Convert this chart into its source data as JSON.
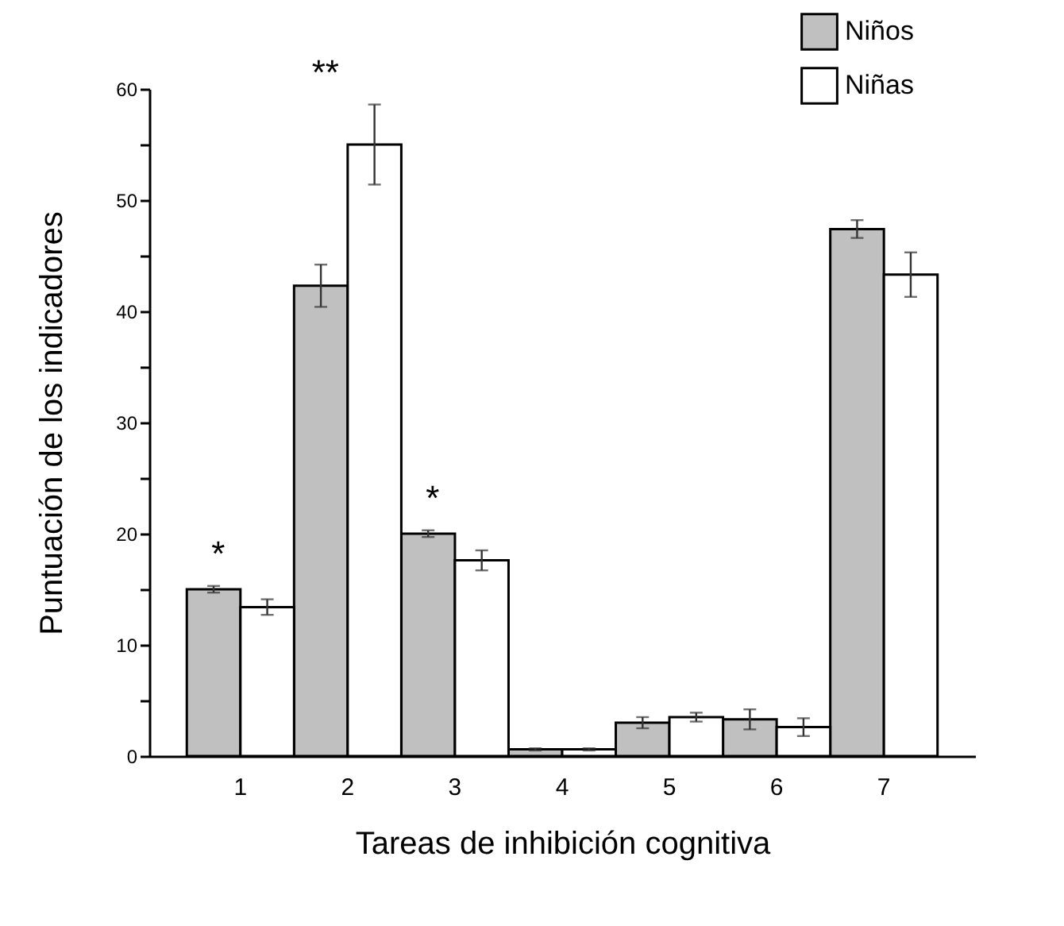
{
  "chart_data": {
    "type": "bar",
    "xlabel": "Tareas de inhibición cognitiva",
    "ylabel": "Puntuación de los indicadores",
    "categories": [
      "1",
      "2",
      "3",
      "4",
      "5",
      "6",
      "7"
    ],
    "series": [
      {
        "name": "Niños",
        "color": "#c0c0c0",
        "values": [
          15.0,
          42.3,
          20.0,
          0.6,
          3.0,
          3.3,
          47.4
        ],
        "errors": [
          0.3,
          1.9,
          0.3,
          0.1,
          0.5,
          0.9,
          0.8
        ]
      },
      {
        "name": "Niñas",
        "color": "#ffffff",
        "values": [
          13.4,
          55.0,
          17.6,
          0.6,
          3.5,
          2.6,
          43.3
        ],
        "errors": [
          0.7,
          3.6,
          0.9,
          0.1,
          0.4,
          0.8,
          2.0
        ]
      }
    ],
    "ylim": [
      0,
      60
    ],
    "yticks": [
      0,
      {
        "value": 5,
        "label": null
      },
      10,
      {
        "value": 15,
        "label": null
      },
      20,
      {
        "value": 25,
        "label": null
      },
      30,
      {
        "value": 35,
        "label": null
      },
      40,
      {
        "value": 45,
        "label": null
      },
      50,
      {
        "value": 55,
        "label": null
      },
      60
    ],
    "annotations": [
      "*",
      "**",
      "*"
    ],
    "legend": "top right",
    "grid": false
  }
}
